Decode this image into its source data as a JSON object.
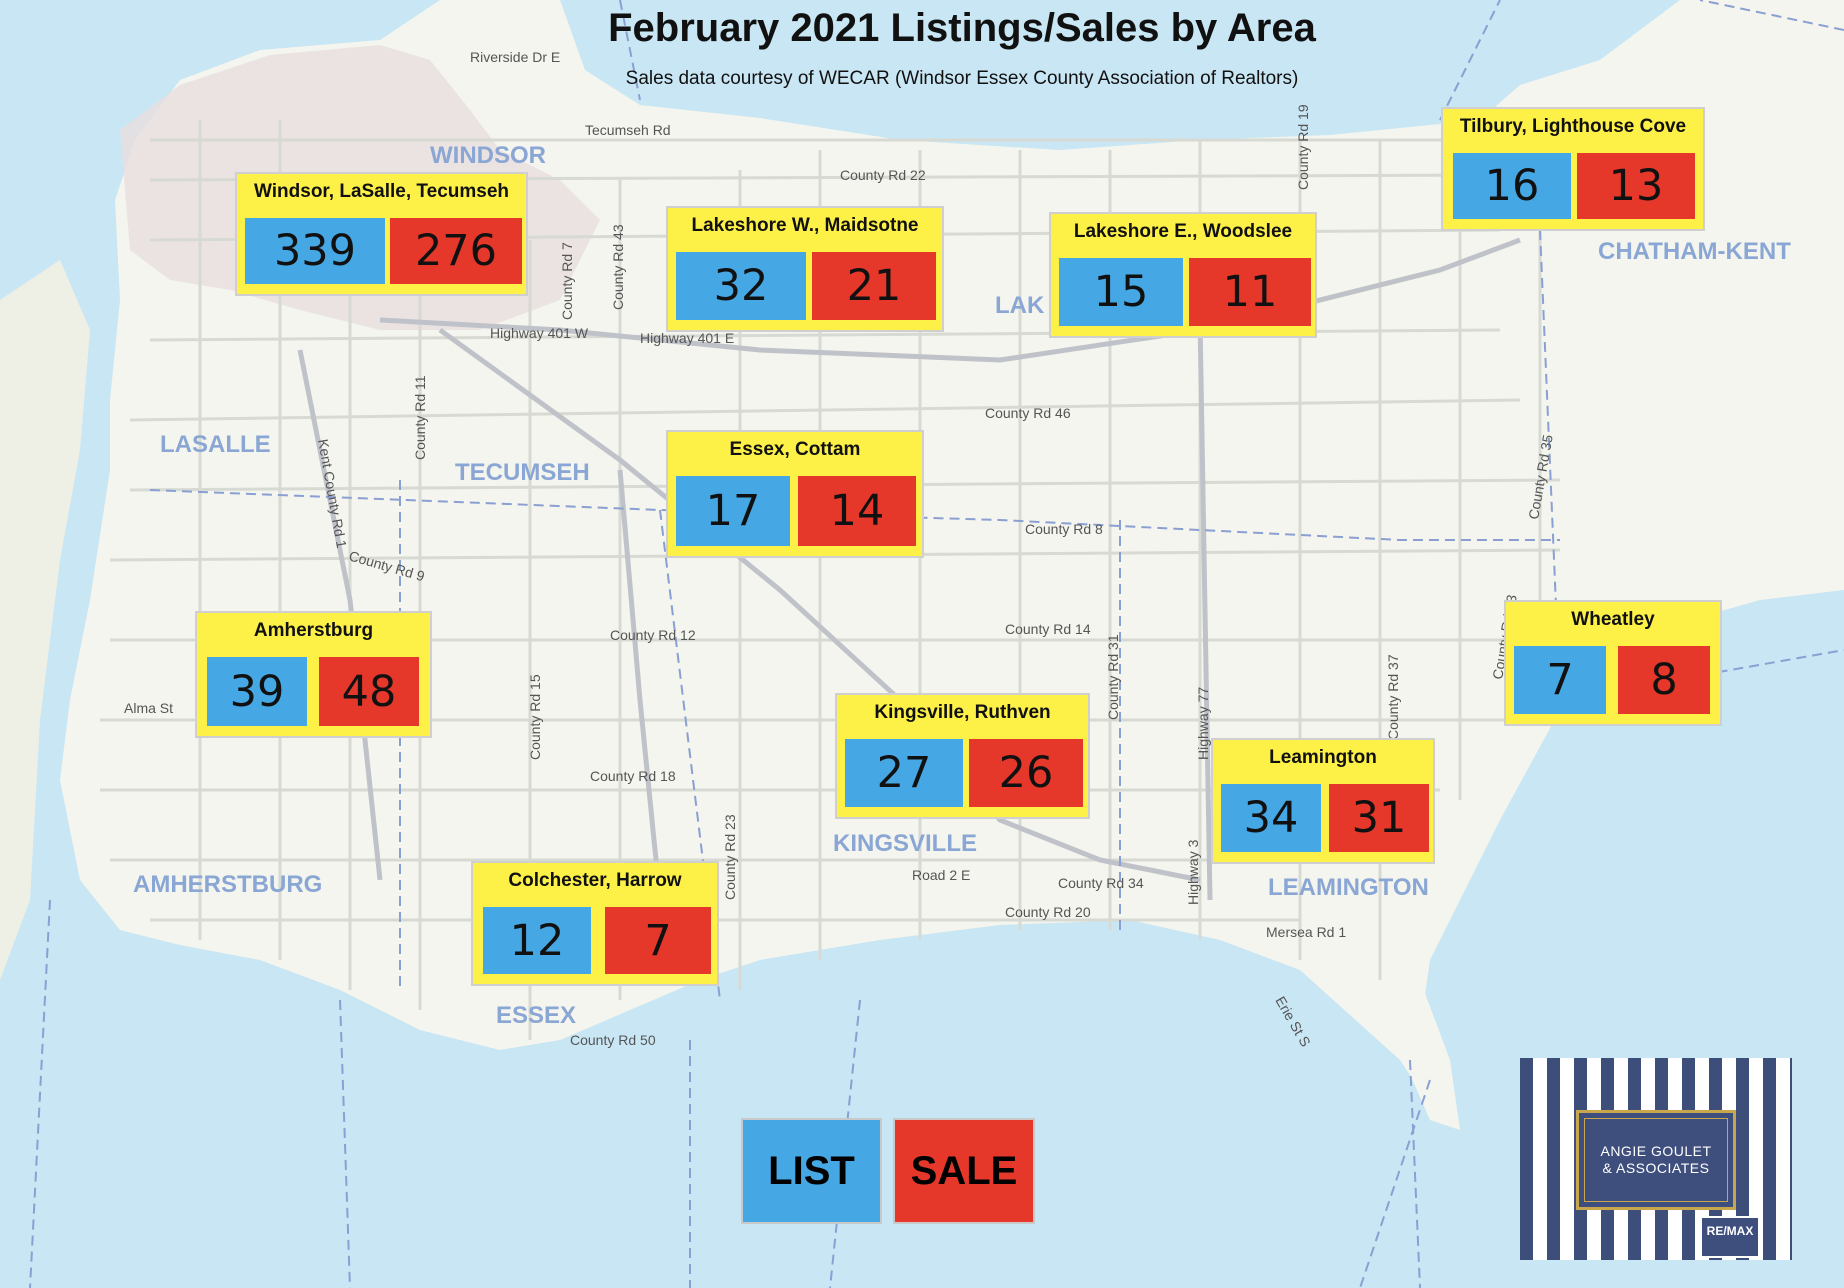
{
  "title": "February 2021 Listings/Sales by Area",
  "subtitle": "Sales data courtesy of WECAR (Windsor Essex County Association of Realtors)",
  "colors": {
    "list": "#45a7e4",
    "sale": "#e5372a",
    "box": "#fdf148",
    "water": "#c9e6f4",
    "land": "#f4f5ee"
  },
  "areas": [
    {
      "name": "Windsor, LaSalle, Tecumseh",
      "list": "339",
      "sale": "276"
    },
    {
      "name": "Lakeshore W., Maidsotne",
      "list": "32",
      "sale": "21"
    },
    {
      "name": "Lakeshore E., Woodslee",
      "list": "15",
      "sale": "11"
    },
    {
      "name": "Tilbury, Lighthouse Cove",
      "list": "16",
      "sale": "13"
    },
    {
      "name": "Essex, Cottam",
      "list": "17",
      "sale": "14"
    },
    {
      "name": "Amherstburg",
      "list": "39",
      "sale": "48"
    },
    {
      "name": "Wheatley",
      "list": "7",
      "sale": "8"
    },
    {
      "name": "Kingsville, Ruthven",
      "list": "27",
      "sale": "26"
    },
    {
      "name": "Leamington",
      "list": "34",
      "sale": "31"
    },
    {
      "name": "Colchester, Harrow",
      "list": "12",
      "sale": "7"
    }
  ],
  "legend": {
    "list": "LIST",
    "sale": "SALE"
  },
  "logo": {
    "line1": "ANGIE GOULET",
    "line2": "& ASSOCIATES",
    "brand": "RE/MAX"
  },
  "map_labels": {
    "towns": [
      "WINDSOR",
      "LASALLE",
      "TECUMSEH",
      "AMHERSTBURG",
      "ESSEX",
      "KINGSVILLE",
      "LEAMINGTON",
      "CHATHAM-KENT",
      "LAK"
    ],
    "roads": [
      "Riverside Dr E",
      "Tecumseh Rd",
      "County Rd 22",
      "Highway 401 W",
      "Highway 401 E",
      "County Rd 46",
      "County Rd 8",
      "County Rd 12",
      "County Rd 14",
      "County Rd 18",
      "County Rd 20",
      "County Rd 50",
      "County Rd 34",
      "Road 2 E",
      "Mersea Rd 1",
      "Alma St",
      "County Rd 9",
      "County Rd 11",
      "County Rd 15",
      "County Rd 23",
      "County Rd 31",
      "County Rd 37",
      "Highway 77",
      "Highway 3",
      "Erie St S",
      "County Rd 33",
      "Kent County Rd 1",
      "County Rd 7",
      "County Rd 43",
      "County Rd 19",
      "County Rd 35",
      "County Rd 1"
    ]
  }
}
